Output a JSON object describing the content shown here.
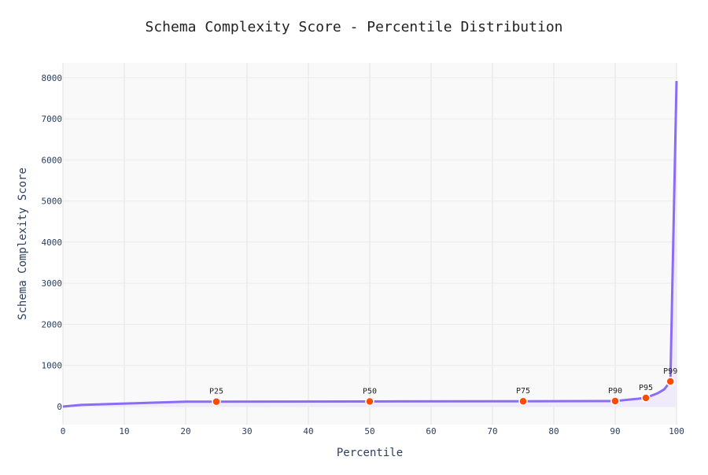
{
  "chart_data": {
    "type": "line",
    "title": "Schema Complexity Score - Percentile Distribution",
    "xlabel": "Percentile",
    "ylabel": "Schema Complexity Score",
    "xlim": [
      0,
      100
    ],
    "ylim": [
      -440,
      8360
    ],
    "xticks": [
      0,
      10,
      20,
      30,
      40,
      50,
      60,
      70,
      80,
      90,
      100
    ],
    "yticks": [
      0,
      1000,
      2000,
      3000,
      4000,
      5000,
      6000,
      7000,
      8000
    ],
    "grid": true,
    "fill": "tozeroy",
    "line": {
      "x": [
        0,
        3,
        20,
        25,
        50,
        75,
        90,
        95,
        97,
        98,
        99,
        100
      ],
      "y": [
        0,
        40,
        120,
        120,
        125,
        130,
        135,
        210,
        330,
        420,
        612,
        7920
      ]
    },
    "markers": [
      {
        "label": "P25",
        "x": 25,
        "y": 120
      },
      {
        "label": "P50",
        "x": 50,
        "y": 125
      },
      {
        "label": "P75",
        "x": 75,
        "y": 130
      },
      {
        "label": "P90",
        "x": 90,
        "y": 135
      },
      {
        "label": "P95",
        "x": 95,
        "y": 210
      },
      {
        "label": "P99",
        "x": 99,
        "y": 612
      }
    ],
    "colors": {
      "line": "#8b6cf6",
      "fill": "#ede7fb",
      "marker": "#ff4a00",
      "plot_bg": "#f9f9f9",
      "grid": "#ebebeb",
      "text": "#2a3f5f"
    }
  }
}
